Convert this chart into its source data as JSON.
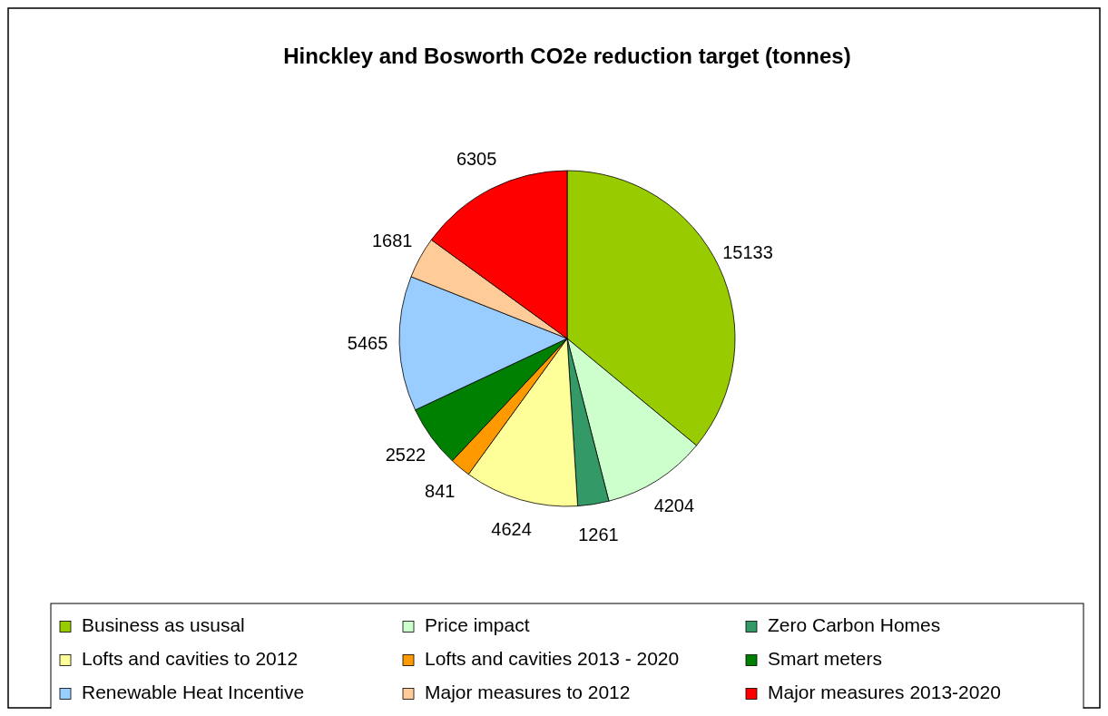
{
  "chart_data": {
    "type": "pie",
    "title": "Hinckley and Bosworth CO2e reduction target (tonnes)",
    "categories": [
      "Business as ususal",
      "Price impact",
      "Zero Carbon Homes",
      "Lofts and cavities to 2012",
      "Lofts and cavities 2013 - 2020",
      "Smart meters",
      "Renewable Heat Incentive",
      "Major measures to 2012",
      "Major measures 2013-2020"
    ],
    "values": [
      15133,
      4204,
      1261,
      4624,
      841,
      2522,
      5465,
      1681,
      6305
    ],
    "colors": [
      "#99cc00",
      "#ccffcc",
      "#339966",
      "#ffff99",
      "#ff9900",
      "#008000",
      "#99ccff",
      "#ffcc99",
      "#ff0000"
    ],
    "data_labels": true,
    "legend": "bottom"
  }
}
